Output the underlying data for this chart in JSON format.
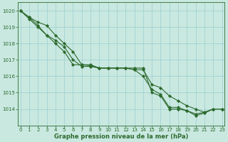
{
  "xlabel": "Graphe pression niveau de la mer (hPa)",
  "x": [
    0,
    1,
    2,
    3,
    4,
    5,
    6,
    7,
    8,
    9,
    10,
    11,
    12,
    13,
    14,
    15,
    16,
    17,
    18,
    19,
    20,
    21,
    22,
    23
  ],
  "series1": [
    1020.0,
    1019.6,
    1019.3,
    1019.1,
    1018.5,
    1018.0,
    1017.5,
    1016.7,
    1016.7,
    1016.5,
    1016.5,
    1016.5,
    1016.5,
    1016.4,
    1016.4,
    1015.5,
    1015.3,
    1014.8,
    1014.5,
    1014.2,
    1014.0,
    1013.8,
    1014.0,
    1014.0
  ],
  "series2": [
    1020.0,
    1019.6,
    1019.1,
    1018.5,
    1018.0,
    1017.5,
    1016.7,
    1016.7,
    1016.65,
    1016.5,
    1016.5,
    1016.5,
    1016.5,
    1016.4,
    1016.0,
    1015.2,
    1014.9,
    1014.1,
    1014.1,
    1013.9,
    1013.7,
    1013.8,
    1014.0,
    1014.0
  ],
  "series3": [
    1020.0,
    1019.5,
    1019.0,
    1018.5,
    1018.2,
    1017.8,
    1017.0,
    1016.6,
    1016.6,
    1016.5,
    1016.5,
    1016.5,
    1016.5,
    1016.5,
    1016.5,
    1015.0,
    1014.8,
    1014.0,
    1014.0,
    1013.9,
    1013.6,
    1013.75,
    1014.0,
    1014.0
  ],
  "ylim": [
    1013.0,
    1020.5
  ],
  "xlim": [
    -0.3,
    23.3
  ],
  "yticks": [
    1014,
    1015,
    1016,
    1017,
    1018,
    1019,
    1020
  ],
  "xticks": [
    0,
    1,
    2,
    3,
    4,
    5,
    6,
    7,
    8,
    9,
    10,
    11,
    12,
    13,
    14,
    15,
    16,
    17,
    18,
    19,
    20,
    21,
    22,
    23
  ],
  "line_color": "#2d6a2d",
  "bg_color": "#c8e8e0",
  "grid_color": "#9ecece",
  "marker": "D",
  "markersize": 2.0,
  "linewidth": 0.8,
  "tick_fontsize": 5.0,
  "label_fontsize": 6.0,
  "label_fontweight": "bold"
}
